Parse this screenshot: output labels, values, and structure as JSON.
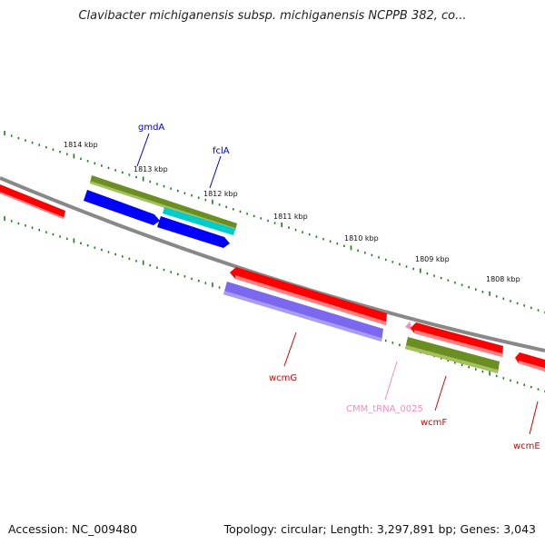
{
  "title": "Clavibacter michiganensis subsp. michiganensis NCPPB 382, co...",
  "footer": {
    "accession": "Accession: NC_009480",
    "stats": "Topology: circular; Length: 3,297,891 bp; Genes: 3,043"
  },
  "ruler": {
    "unit": "kbp",
    "ticks": [
      "1814 kbp",
      "1813 kbp",
      "1812 kbp",
      "1811 kbp",
      "1810 kbp",
      "1809 kbp",
      "1808 kbp"
    ]
  },
  "genes": [
    {
      "name": "gmdA",
      "color": "#0000cc"
    },
    {
      "name": "fclA",
      "color": "#0000cc"
    },
    {
      "name": "wcmG",
      "color": "#dd0000"
    },
    {
      "name": "CMM_tRNA_0025",
      "color": "#ff88bb"
    },
    {
      "name": "wcmF",
      "color": "#dd0000"
    },
    {
      "name": "wcmE",
      "color": "#dd0000"
    }
  ],
  "colors": {
    "backbone": "#888888",
    "tick_dots": "#1f7a1f",
    "cds_red": "#ff0000",
    "cds_blue": "#0000ff",
    "cds_olive": "#6b8e23",
    "cds_cyan": "#00cccc",
    "cds_purple": "#7b68ee",
    "trna_pink": "#ff88bb"
  }
}
